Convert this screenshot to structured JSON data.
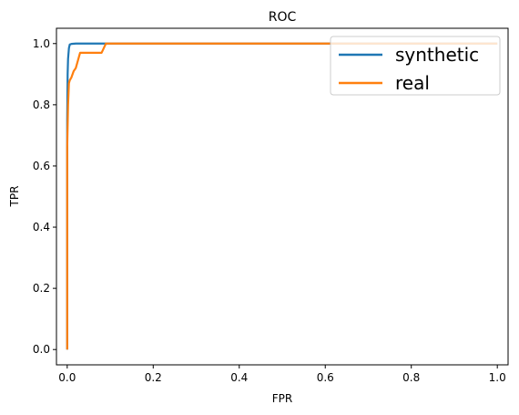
{
  "chart_data": {
    "type": "line",
    "title": "ROC",
    "xlabel": "FPR",
    "ylabel": "TPR",
    "xlim": [
      -0.025,
      1.025
    ],
    "ylim": [
      -0.05,
      1.05
    ],
    "xticks": [
      "0.0",
      "0.2",
      "0.4",
      "0.6",
      "0.8",
      "1.0"
    ],
    "yticks": [
      "0.0",
      "0.2",
      "0.4",
      "0.6",
      "0.8",
      "1.0"
    ],
    "grid": false,
    "legend_position": "top-right",
    "series": [
      {
        "name": "synthetic",
        "color": "#1f77b4",
        "x": [
          0.0,
          0.0,
          0.001,
          0.002,
          0.004,
          0.006,
          0.01,
          0.02,
          0.05,
          0.1,
          0.3,
          0.6,
          1.0
        ],
        "y": [
          0.0,
          0.75,
          0.9,
          0.95,
          0.985,
          0.997,
          0.999,
          1.0,
          1.0,
          1.0,
          1.0,
          1.0,
          1.0
        ]
      },
      {
        "name": "real",
        "color": "#ff7f0e",
        "x": [
          0.0,
          0.0,
          0.002,
          0.004,
          0.006,
          0.01,
          0.015,
          0.02,
          0.025,
          0.03,
          0.05,
          0.08,
          0.09,
          0.1,
          0.3,
          0.6,
          1.0
        ],
        "y": [
          0.0,
          0.66,
          0.8,
          0.87,
          0.88,
          0.89,
          0.91,
          0.92,
          0.945,
          0.97,
          0.97,
          0.97,
          1.0,
          1.0,
          1.0,
          1.0,
          1.0
        ]
      }
    ]
  }
}
